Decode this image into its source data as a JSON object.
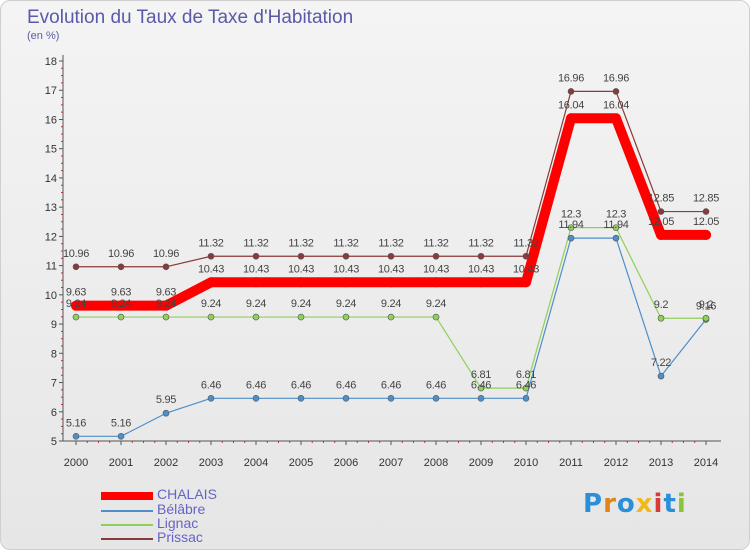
{
  "header": {
    "title": "Evolution du Taux de Taxe d'Habitation",
    "unit": "(en %)"
  },
  "logo": {
    "text": "Proxiti",
    "colors": [
      "#2a8fd8",
      "#e0851a",
      "#2a8fd8",
      "#f0b81a",
      "#d83a3a",
      "#2a8fd8",
      "#8ac43a"
    ]
  },
  "chart_data": {
    "type": "line",
    "title": "Evolution du Taux de Taxe d'Habitation",
    "ylabel": "(en %)",
    "xlabel": "",
    "x": [
      "2000",
      "2001",
      "2002",
      "2003",
      "2004",
      "2005",
      "2006",
      "2007",
      "2008",
      "2009",
      "2010",
      "2011",
      "2012",
      "2013",
      "2014"
    ],
    "ylim": [
      5,
      18
    ],
    "yticks": [
      5,
      6,
      7,
      8,
      9,
      10,
      11,
      12,
      13,
      14,
      15,
      16,
      17,
      18
    ],
    "grid": false,
    "legend_position": "bottom-left",
    "series": [
      {
        "name": "CHALAIS",
        "color": "#ff0000",
        "values": [
          9.63,
          9.63,
          9.63,
          10.43,
          10.43,
          10.43,
          10.43,
          10.43,
          10.43,
          10.43,
          10.43,
          16.04,
          16.04,
          12.05,
          12.05
        ],
        "labels": [
          "9.63",
          "9.63",
          "9.63",
          "10.43",
          "10.43",
          "10.43",
          "10.43",
          "10.43",
          "10.43",
          "10.43",
          "10.43",
          "16.04",
          "16.04",
          "12.05",
          "12.05"
        ]
      },
      {
        "name": "Bélâbre",
        "color": "#4f8fc8",
        "values": [
          5.16,
          5.16,
          5.95,
          6.46,
          6.46,
          6.46,
          6.46,
          6.46,
          6.46,
          6.46,
          6.46,
          11.94,
          11.94,
          7.22,
          9.16
        ],
        "labels": [
          "5.16",
          "5.16",
          "5.95",
          "6.46",
          "6.46",
          "6.46",
          "6.46",
          "6.46",
          "6.46",
          "6.46",
          "6.46",
          "11.94",
          "11.94",
          "7.22",
          "9.16"
        ]
      },
      {
        "name": "Lignac",
        "color": "#8fd05a",
        "values": [
          9.24,
          9.24,
          9.24,
          9.24,
          9.24,
          9.24,
          9.24,
          9.24,
          9.24,
          6.81,
          6.81,
          12.3,
          12.3,
          9.2,
          9.2
        ],
        "labels": [
          "9.24",
          "9.24",
          "9.24",
          "9.24",
          "9.24",
          "9.24",
          "9.24",
          "9.24",
          "9.24",
          "6.81",
          "6.81",
          "12.3",
          "12.3",
          "9.2",
          "9.2"
        ]
      },
      {
        "name": "Prissac",
        "color": "#8a3a3a",
        "values": [
          10.96,
          10.96,
          10.96,
          11.32,
          11.32,
          11.32,
          11.32,
          11.32,
          11.32,
          11.32,
          11.32,
          16.96,
          16.96,
          12.85,
          12.85
        ],
        "labels": [
          "10.96",
          "10.96",
          "10.96",
          "11.32",
          "11.32",
          "11.32",
          "11.32",
          "11.32",
          "11.32",
          "11.32",
          "11.32",
          "16.96",
          "16.96",
          "12.85",
          "12.85"
        ]
      }
    ]
  }
}
